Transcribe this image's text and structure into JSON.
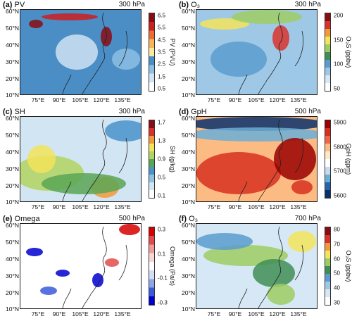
{
  "panels": [
    {
      "tag": "(a)",
      "name": "PV",
      "level": "300 hPa",
      "unit": "PV (PVU)",
      "ticks": [
        "6.5",
        "5.5",
        "4.5",
        "3.5",
        "2.5",
        "1.5",
        "0.5"
      ],
      "colors": [
        "#ffffff",
        "#cfe3f2",
        "#8cc0e3",
        "#4b8ec6",
        "#fbe9a0",
        "#f7b55b",
        "#ef6b34",
        "#cc1f1f",
        "#8a0c12"
      ]
    },
    {
      "tag": "(b)",
      "name": "O₃",
      "level": "300 hPa",
      "unit": "O₃S (ppbv)",
      "ticks": [
        "200",
        "150",
        "100",
        "50"
      ],
      "colors": [
        "#ffffff",
        "#d6e8f5",
        "#9ec8e6",
        "#5a9ccf",
        "#3f8e55",
        "#9dcc63",
        "#f3e45a",
        "#f29a3a",
        "#d9322b",
        "#8a0c12"
      ]
    },
    {
      "tag": "(c)",
      "name": "SH",
      "level": "300 hPa",
      "unit": "SH (g/kg)",
      "ticks": [
        "1.7",
        "1.3",
        "0.9",
        "0.5",
        "0.1"
      ],
      "colors": [
        "#ffffff",
        "#d2e5f3",
        "#8ec2e3",
        "#4a93cb",
        "#5aa655",
        "#b3d35f",
        "#f3e45a",
        "#f29a3a",
        "#d9322b",
        "#8a0c12"
      ]
    },
    {
      "tag": "(d)",
      "name": "GpH",
      "level": "500 hPa",
      "unit": "GpH (gpm)",
      "ticks": [
        "5900",
        "5800",
        "5700",
        "5600"
      ],
      "colors": [
        "#08306b",
        "#2166ac",
        "#6baed6",
        "#c6dbef",
        "#ffffff",
        "#fee8c8",
        "#fdbb84",
        "#ef6548",
        "#d7301f",
        "#990000"
      ]
    },
    {
      "tag": "(e)",
      "name": "Omega",
      "level": "500 hPa",
      "unit": "Omega (Pa/s)",
      "ticks": [
        "0.3",
        "0.1",
        "-0.1",
        "-0.3"
      ],
      "colors": [
        "#0000d0",
        "#3b5bdb",
        "#8ea5ec",
        "#d4ddf8",
        "#ffffff",
        "#f8d6d6",
        "#f09b9b",
        "#e34a4a",
        "#d60000"
      ]
    },
    {
      "tag": "(f)",
      "name": "O₃",
      "level": "700 hPa",
      "unit": "O₃S (ppbv)",
      "ticks": [
        "80",
        "70",
        "60",
        "50",
        "40",
        "30"
      ],
      "colors": [
        "#ffffff",
        "#d6e8f5",
        "#9ec8e6",
        "#5a9ccf",
        "#3f8e55",
        "#9dcc63",
        "#f3e45a",
        "#f29a3a",
        "#d9322b",
        "#8a0c12"
      ]
    }
  ],
  "lat_labels": [
    "60°N",
    "50°N",
    "40°N",
    "30°N",
    "20°N",
    "10°N"
  ],
  "lon_labels": [
    "75°E",
    "90°E",
    "105°E",
    "120°E",
    "135°E"
  ]
}
